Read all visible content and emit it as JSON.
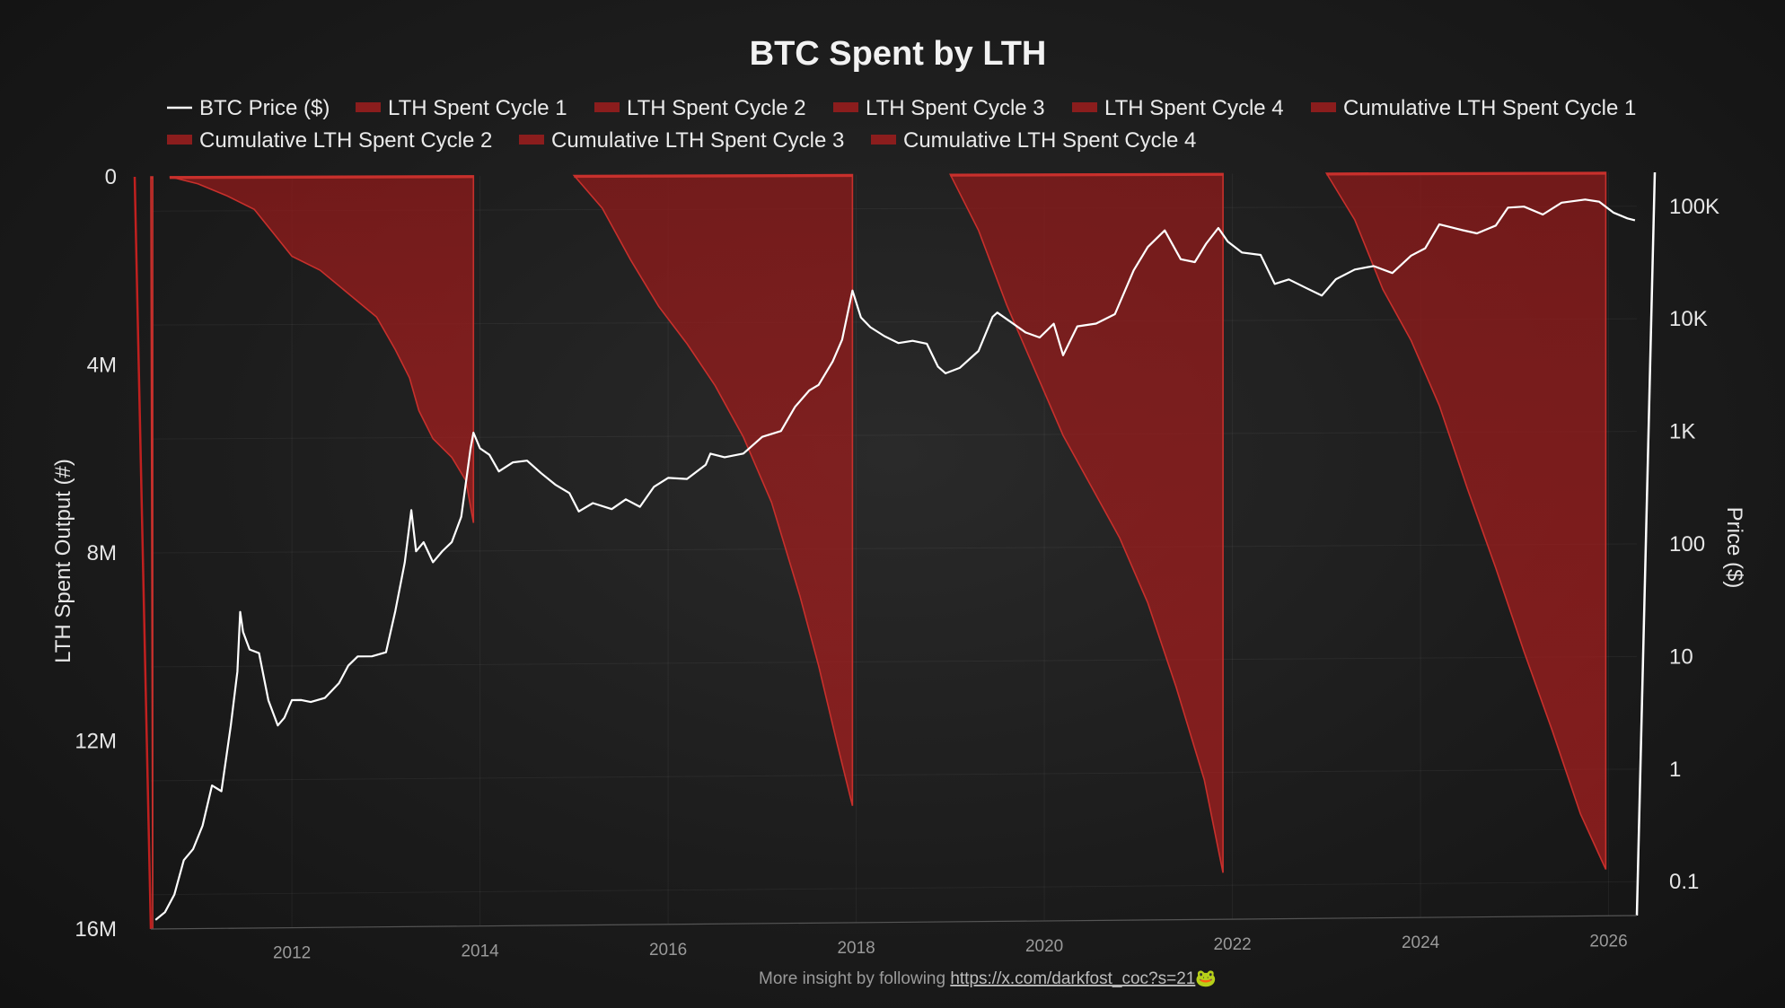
{
  "chart_data": {
    "type": "area",
    "title": "BTC Spent by LTH",
    "legend_position": "top",
    "legend": [
      {
        "label": "BTC Price ($)",
        "kind": "line",
        "color": "#ffffff"
      },
      {
        "label": "LTH Spent Cycle 1",
        "kind": "box",
        "color": "#8b1d1d"
      },
      {
        "label": "LTH Spent Cycle 2",
        "kind": "box",
        "color": "#8b1d1d"
      },
      {
        "label": "LTH Spent Cycle 3",
        "kind": "box",
        "color": "#8b1d1d"
      },
      {
        "label": "LTH Spent Cycle 4",
        "kind": "box",
        "color": "#8b1d1d"
      },
      {
        "label": "Cumulative LTH Spent Cycle 1",
        "kind": "box",
        "color": "#8b1d1d"
      },
      {
        "label": "Cumulative LTH Spent Cycle 2",
        "kind": "box",
        "color": "#8b1d1d"
      },
      {
        "label": "Cumulative LTH Spent Cycle 3",
        "kind": "box",
        "color": "#8b1d1d"
      },
      {
        "label": "Cumulative LTH Spent Cycle 4",
        "kind": "box",
        "color": "#8b1d1d"
      }
    ],
    "ylabel_left": "LTH Spent Output (#)",
    "ylabel_right": "Price ($)",
    "y_left": {
      "min": 0,
      "max": 16000000,
      "inverted": true,
      "ticks": [
        "0",
        "4M",
        "8M",
        "12M",
        "16M"
      ]
    },
    "y_right": {
      "scale": "log",
      "min": 0.05,
      "max": 200000,
      "ticks": [
        {
          "label": "100K",
          "value": 100000
        },
        {
          "label": "10K",
          "value": 10000
        },
        {
          "label": "1K",
          "value": 1000
        },
        {
          "label": "100",
          "value": 100
        },
        {
          "label": "10",
          "value": 10
        },
        {
          "label": "1",
          "value": 1
        },
        {
          "label": "0.1",
          "value": 0.1
        }
      ]
    },
    "x": {
      "min": 2010.5,
      "max": 2026.3,
      "ticks": [
        "2012",
        "2014",
        "2016",
        "2018",
        "2020",
        "2022",
        "2024",
        "2026"
      ]
    },
    "btc_price": [
      [
        2010.55,
        0.06
      ],
      [
        2010.65,
        0.07
      ],
      [
        2010.75,
        0.1
      ],
      [
        2010.85,
        0.2
      ],
      [
        2010.95,
        0.25
      ],
      [
        2011.05,
        0.4
      ],
      [
        2011.15,
        0.9
      ],
      [
        2011.25,
        0.8
      ],
      [
        2011.35,
        3.0
      ],
      [
        2011.42,
        9.0
      ],
      [
        2011.45,
        30
      ],
      [
        2011.48,
        20
      ],
      [
        2011.55,
        14
      ],
      [
        2011.65,
        13
      ],
      [
        2011.75,
        5
      ],
      [
        2011.85,
        3
      ],
      [
        2011.92,
        3.5
      ],
      [
        2012.0,
        5
      ],
      [
        2012.1,
        5
      ],
      [
        2012.2,
        4.8
      ],
      [
        2012.35,
        5.2
      ],
      [
        2012.5,
        7
      ],
      [
        2012.6,
        10
      ],
      [
        2012.7,
        12
      ],
      [
        2012.85,
        12
      ],
      [
        2013.0,
        13
      ],
      [
        2013.1,
        30
      ],
      [
        2013.2,
        80
      ],
      [
        2013.27,
        230
      ],
      [
        2013.32,
        100
      ],
      [
        2013.4,
        120
      ],
      [
        2013.5,
        80
      ],
      [
        2013.6,
        100
      ],
      [
        2013.7,
        120
      ],
      [
        2013.8,
        200
      ],
      [
        2013.9,
        800
      ],
      [
        2013.93,
        1100
      ],
      [
        2014.0,
        800
      ],
      [
        2014.1,
        700
      ],
      [
        2014.2,
        500
      ],
      [
        2014.35,
        600
      ],
      [
        2014.5,
        620
      ],
      [
        2014.65,
        480
      ],
      [
        2014.8,
        380
      ],
      [
        2014.95,
        320
      ],
      [
        2015.05,
        220
      ],
      [
        2015.2,
        260
      ],
      [
        2015.4,
        230
      ],
      [
        2015.55,
        280
      ],
      [
        2015.7,
        240
      ],
      [
        2015.85,
        360
      ],
      [
        2016.0,
        430
      ],
      [
        2016.2,
        420
      ],
      [
        2016.4,
        560
      ],
      [
        2016.45,
        700
      ],
      [
        2016.6,
        650
      ],
      [
        2016.8,
        700
      ],
      [
        2017.0,
        980
      ],
      [
        2017.2,
        1100
      ],
      [
        2017.35,
        1800
      ],
      [
        2017.5,
        2500
      ],
      [
        2017.6,
        2800
      ],
      [
        2017.75,
        4500
      ],
      [
        2017.85,
        7000
      ],
      [
        2017.96,
        19000
      ],
      [
        2018.05,
        11000
      ],
      [
        2018.15,
        9000
      ],
      [
        2018.3,
        7500
      ],
      [
        2018.45,
        6500
      ],
      [
        2018.6,
        6800
      ],
      [
        2018.75,
        6400
      ],
      [
        2018.87,
        4000
      ],
      [
        2018.95,
        3500
      ],
      [
        2019.1,
        3900
      ],
      [
        2019.3,
        5500
      ],
      [
        2019.45,
        11000
      ],
      [
        2019.5,
        12000
      ],
      [
        2019.65,
        9800
      ],
      [
        2019.8,
        8000
      ],
      [
        2019.95,
        7200
      ],
      [
        2020.1,
        9500
      ],
      [
        2020.2,
        5000
      ],
      [
        2020.35,
        9000
      ],
      [
        2020.55,
        9500
      ],
      [
        2020.75,
        11500
      ],
      [
        2020.95,
        28000
      ],
      [
        2021.1,
        45000
      ],
      [
        2021.28,
        63000
      ],
      [
        2021.45,
        35000
      ],
      [
        2021.6,
        33000
      ],
      [
        2021.72,
        48000
      ],
      [
        2021.85,
        66000
      ],
      [
        2021.95,
        50000
      ],
      [
        2022.1,
        40000
      ],
      [
        2022.3,
        38000
      ],
      [
        2022.45,
        21000
      ],
      [
        2022.6,
        23000
      ],
      [
        2022.8,
        19000
      ],
      [
        2022.95,
        16500
      ],
      [
        2023.1,
        23000
      ],
      [
        2023.3,
        28000
      ],
      [
        2023.5,
        30000
      ],
      [
        2023.7,
        26000
      ],
      [
        2023.9,
        37000
      ],
      [
        2024.05,
        43000
      ],
      [
        2024.2,
        70000
      ],
      [
        2024.45,
        62000
      ],
      [
        2024.6,
        58000
      ],
      [
        2024.8,
        68000
      ],
      [
        2024.93,
        98000
      ],
      [
        2025.1,
        100000
      ],
      [
        2025.3,
        85000
      ],
      [
        2025.5,
        108000
      ],
      [
        2025.75,
        115000
      ],
      [
        2025.9,
        110000
      ],
      [
        2026.05,
        88000
      ],
      [
        2026.2,
        78000
      ],
      [
        2026.28,
        75000
      ]
    ],
    "cycles": [
      {
        "name": "LTH Spent Cycle 1",
        "start": 2010.5,
        "end": 2010.5,
        "points": [
          [
            2010.5,
            0
          ],
          [
            2010.5,
            0.1
          ],
          [
            2010.52,
            16000000
          ]
        ]
      },
      {
        "name": "Cumulative LTH Spent Cycle 1",
        "start": 2010.7,
        "end": 2013.93,
        "points": [
          [
            2010.7,
            0
          ],
          [
            2011.0,
            150000
          ],
          [
            2011.3,
            400000
          ],
          [
            2011.6,
            700000
          ],
          [
            2011.8,
            1200000
          ],
          [
            2012.0,
            1700000
          ],
          [
            2012.3,
            2000000
          ],
          [
            2012.6,
            2500000
          ],
          [
            2012.9,
            3000000
          ],
          [
            2013.1,
            3700000
          ],
          [
            2013.25,
            4300000
          ],
          [
            2013.35,
            5000000
          ],
          [
            2013.5,
            5600000
          ],
          [
            2013.7,
            6000000
          ],
          [
            2013.85,
            6500000
          ],
          [
            2013.93,
            7400000
          ]
        ]
      },
      {
        "name": "Cumulative LTH Spent Cycle 2",
        "start": 2015.0,
        "end": 2017.96,
        "points": [
          [
            2015.0,
            0
          ],
          [
            2015.3,
            700000
          ],
          [
            2015.6,
            1800000
          ],
          [
            2015.9,
            2800000
          ],
          [
            2016.2,
            3600000
          ],
          [
            2016.5,
            4500000
          ],
          [
            2016.8,
            5600000
          ],
          [
            2017.1,
            7000000
          ],
          [
            2017.4,
            9000000
          ],
          [
            2017.6,
            10500000
          ],
          [
            2017.8,
            12200000
          ],
          [
            2017.96,
            13500000
          ]
        ]
      },
      {
        "name": "Cumulative LTH Spent Cycle 3",
        "start": 2019.0,
        "end": 2021.9,
        "points": [
          [
            2019.0,
            0
          ],
          [
            2019.3,
            1200000
          ],
          [
            2019.6,
            2800000
          ],
          [
            2019.9,
            4200000
          ],
          [
            2020.2,
            5600000
          ],
          [
            2020.5,
            6700000
          ],
          [
            2020.8,
            7800000
          ],
          [
            2021.1,
            9200000
          ],
          [
            2021.4,
            11000000
          ],
          [
            2021.7,
            13000000
          ],
          [
            2021.9,
            15000000
          ]
        ]
      },
      {
        "name": "Cumulative LTH Spent Cycle 4",
        "start": 2023.0,
        "end": 2025.97,
        "points": [
          [
            2023.0,
            0
          ],
          [
            2023.3,
            1000000
          ],
          [
            2023.6,
            2500000
          ],
          [
            2023.9,
            3600000
          ],
          [
            2024.2,
            5000000
          ],
          [
            2024.5,
            6800000
          ],
          [
            2024.8,
            8500000
          ],
          [
            2025.1,
            10300000
          ],
          [
            2025.4,
            12000000
          ],
          [
            2025.7,
            13800000
          ],
          [
            2025.97,
            15000000
          ]
        ]
      }
    ],
    "grid": true
  },
  "footer": {
    "text": "More insight by following ",
    "link": "https://x.com/darkfost_coc?s=21",
    "emoji": "🐸"
  }
}
